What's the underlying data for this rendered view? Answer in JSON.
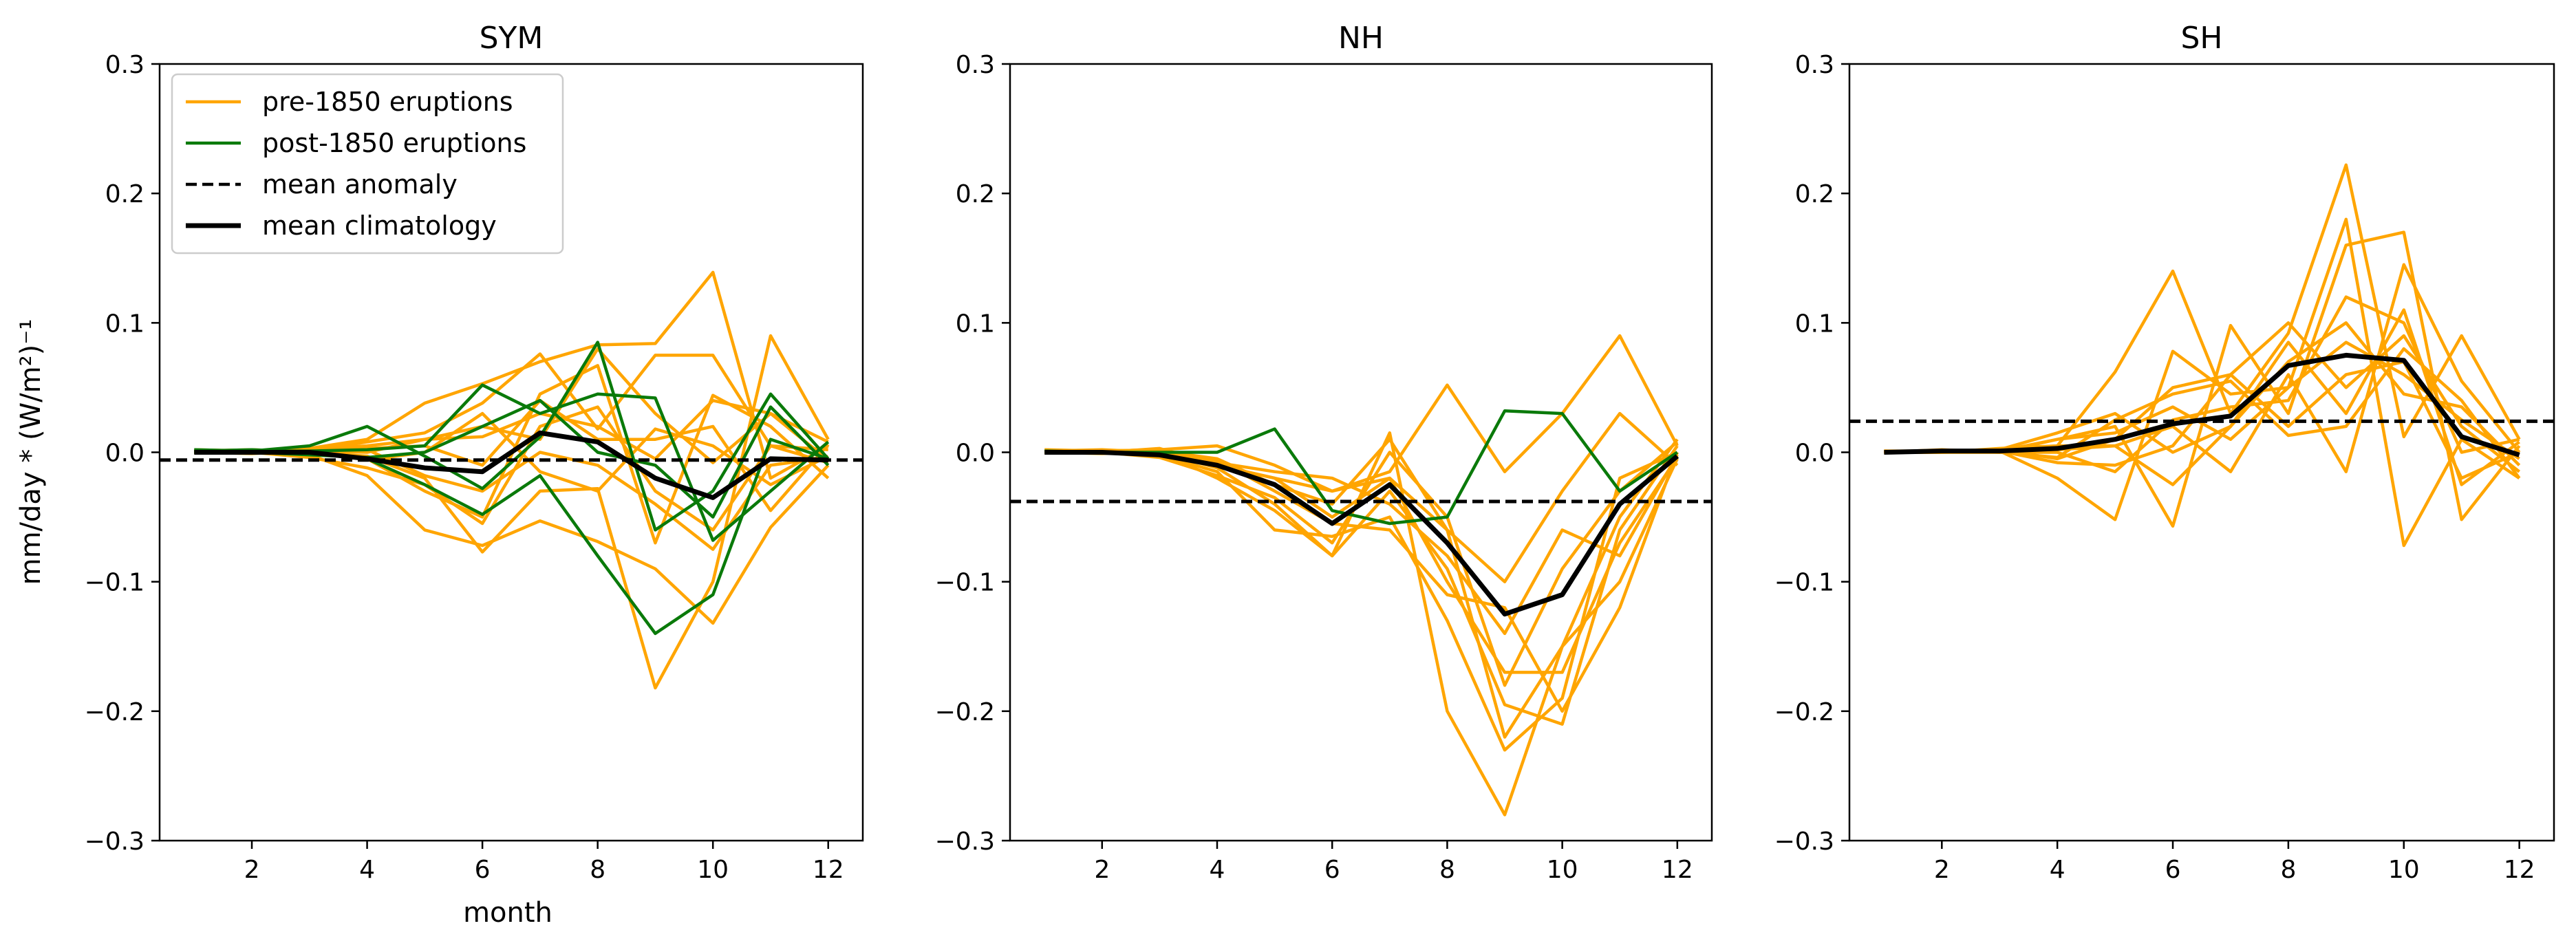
{
  "figure": {
    "ylabel": "mm/day * (W/m²)⁻¹",
    "xlabel": "month"
  },
  "legend": [
    {
      "label": "pre-1850 eruptions",
      "color": "#FFA500",
      "style": "solid"
    },
    {
      "label": "post-1850 eruptions",
      "color": "#0A7A0A",
      "style": "solid"
    },
    {
      "label": "mean anomaly",
      "color": "#000000",
      "style": "dashed"
    },
    {
      "label": "mean climatology",
      "color": "#000000",
      "style": "solid-thick"
    }
  ],
  "colors": {
    "pre": "#FFA500",
    "post": "#0A7A0A",
    "mean": "#000000"
  },
  "chart_data": [
    {
      "type": "line",
      "title": "SYM",
      "xlabel": "month",
      "ylabel": "mm/day * (W/m²)⁻¹",
      "xlim": [
        0.4,
        12.6
      ],
      "ylim": [
        -0.3,
        0.3
      ],
      "xticks": [
        2,
        4,
        6,
        8,
        10,
        12
      ],
      "yticks": [
        -0.3,
        -0.2,
        -0.1,
        0.0,
        0.1,
        0.2,
        0.3
      ],
      "ytick_labels": [
        "−0.3",
        "−0.2",
        "−0.1",
        "0.0",
        "0.1",
        "0.2",
        "0.3"
      ],
      "x": [
        1,
        2,
        3,
        4,
        5,
        6,
        7,
        8,
        9,
        10,
        11,
        12
      ],
      "pre1850": [
        [
          0.002,
          0.001,
          0.0,
          -0.003,
          -0.02,
          -0.077,
          -0.03,
          -0.028,
          -0.182,
          -0.1,
          0.09,
          0.01
        ],
        [
          0.001,
          0.0,
          0.003,
          0.01,
          0.038,
          0.053,
          0.07,
          0.083,
          0.084,
          0.139,
          -0.02,
          0.005
        ],
        [
          0.0,
          0.001,
          -0.002,
          -0.018,
          -0.06,
          -0.072,
          -0.053,
          -0.069,
          -0.09,
          -0.132,
          -0.058,
          -0.01
        ],
        [
          0.0,
          -0.001,
          0.001,
          0.008,
          0.015,
          0.038,
          0.076,
          0.018,
          0.075,
          0.075,
          0.005,
          0.002
        ],
        [
          0.001,
          0.002,
          0.0,
          -0.005,
          -0.03,
          -0.05,
          0.045,
          0.067,
          -0.07,
          0.044,
          0.02,
          -0.02
        ],
        [
          0.0,
          0.001,
          0.002,
          0.005,
          0.01,
          0.02,
          0.01,
          0.08,
          0.03,
          -0.008,
          0.03,
          0.008
        ],
        [
          0.0,
          0.0,
          -0.004,
          -0.012,
          -0.025,
          -0.055,
          0.02,
          0.035,
          -0.03,
          -0.06,
          0.005,
          -0.008
        ],
        [
          0.001,
          0.0,
          0.001,
          0.003,
          0.005,
          -0.01,
          0.04,
          0.01,
          0.01,
          0.02,
          -0.045,
          0.006
        ],
        [
          0.0,
          0.001,
          0.002,
          -0.006,
          0.0,
          0.03,
          -0.015,
          -0.03,
          0.018,
          0.005,
          -0.025,
          -0.003
        ],
        [
          0.0,
          0.0,
          0.0,
          0.002,
          -0.018,
          -0.03,
          0.0,
          -0.01,
          -0.04,
          -0.075,
          -0.01,
          -0.004
        ],
        [
          0.001,
          0.0,
          0.001,
          0.0,
          0.01,
          0.012,
          0.03,
          0.02,
          -0.005,
          0.04,
          0.03,
          -0.006
        ]
      ],
      "post1850": [
        [
          0.002,
          0.001,
          0.005,
          0.02,
          -0.003,
          -0.028,
          0.012,
          0.085,
          -0.06,
          -0.03,
          0.045,
          -0.005
        ],
        [
          0.001,
          0.002,
          0.0,
          -0.005,
          -0.025,
          -0.048,
          -0.018,
          -0.08,
          -0.14,
          -0.11,
          0.01,
          -0.005
        ],
        [
          0.0,
          0.001,
          0.001,
          0.002,
          0.005,
          0.052,
          0.03,
          0.045,
          0.042,
          -0.068,
          -0.03,
          0.008
        ],
        [
          0.0,
          0.0,
          -0.002,
          -0.004,
          0.0,
          0.02,
          0.04,
          0.0,
          -0.01,
          -0.05,
          0.035,
          -0.01
        ]
      ],
      "mean_climatology": [
        0.0,
        0.0,
        0.0,
        -0.005,
        -0.012,
        -0.015,
        0.015,
        0.008,
        -0.02,
        -0.035,
        -0.005,
        -0.006
      ],
      "mean_anomaly": -0.006
    },
    {
      "type": "line",
      "title": "NH",
      "xlabel": "",
      "ylabel": "",
      "xlim": [
        0.4,
        12.6
      ],
      "ylim": [
        -0.3,
        0.3
      ],
      "xticks": [
        2,
        4,
        6,
        8,
        10,
        12
      ],
      "yticks": [
        -0.3,
        -0.2,
        -0.1,
        0.0,
        0.1,
        0.2,
        0.3
      ],
      "ytick_labels": [
        "−0.3",
        "−0.2",
        "−0.1",
        "0.0",
        "0.1",
        "0.2",
        "0.3"
      ],
      "x": [
        1,
        2,
        3,
        4,
        5,
        6,
        7,
        8,
        9,
        10,
        11,
        12
      ],
      "pre1850": [
        [
          0.002,
          0.001,
          0.0,
          -0.02,
          -0.045,
          -0.08,
          0.015,
          -0.2,
          -0.28,
          -0.15,
          -0.05,
          0.01
        ],
        [
          0.001,
          0.0,
          0.003,
          -0.01,
          -0.02,
          -0.03,
          -0.015,
          0.052,
          -0.015,
          0.03,
          0.09,
          0.005
        ],
        [
          0.0,
          0.001,
          -0.002,
          -0.015,
          -0.06,
          -0.065,
          -0.05,
          -0.13,
          -0.23,
          -0.19,
          -0.02,
          0.0
        ],
        [
          0.0,
          -0.001,
          0.001,
          -0.005,
          -0.025,
          -0.04,
          0.01,
          -0.06,
          -0.1,
          -0.03,
          0.03,
          -0.01
        ],
        [
          0.001,
          0.002,
          0.0,
          -0.012,
          -0.04,
          -0.08,
          -0.03,
          -0.09,
          -0.195,
          -0.21,
          -0.06,
          0.005
        ],
        [
          0.0,
          0.001,
          0.002,
          0.005,
          -0.01,
          -0.03,
          -0.02,
          -0.06,
          -0.22,
          -0.15,
          -0.1,
          -0.005
        ],
        [
          0.0,
          0.0,
          -0.004,
          -0.018,
          -0.035,
          -0.07,
          0.0,
          -0.05,
          -0.18,
          -0.09,
          -0.03,
          0.008
        ],
        [
          0.001,
          0.0,
          0.001,
          -0.008,
          -0.015,
          -0.02,
          -0.04,
          -0.08,
          -0.14,
          -0.06,
          -0.08,
          -0.002
        ],
        [
          0.0,
          0.001,
          0.002,
          -0.006,
          -0.03,
          -0.055,
          -0.06,
          -0.11,
          -0.12,
          -0.2,
          -0.12,
          0.0
        ],
        [
          0.0,
          0.0,
          0.0,
          -0.01,
          -0.02,
          -0.05,
          -0.02,
          -0.1,
          -0.17,
          -0.17,
          -0.07,
          -0.004
        ]
      ],
      "post1850": [
        [
          0.001,
          0.0,
          0.0,
          0.0,
          0.018,
          -0.045,
          -0.055,
          -0.05,
          0.032,
          0.03,
          -0.03,
          0.0
        ]
      ],
      "mean_climatology": [
        0.0,
        0.0,
        -0.002,
        -0.01,
        -0.025,
        -0.055,
        -0.025,
        -0.07,
        -0.125,
        -0.11,
        -0.04,
        -0.003
      ],
      "mean_anomaly": -0.038
    },
    {
      "type": "line",
      "title": "SH",
      "xlabel": "",
      "ylabel": "",
      "xlim": [
        0.4,
        12.6
      ],
      "ylim": [
        -0.3,
        0.3
      ],
      "xticks": [
        2,
        4,
        6,
        8,
        10,
        12
      ],
      "yticks": [
        -0.3,
        -0.2,
        -0.1,
        0.0,
        0.1,
        0.2,
        0.3
      ],
      "ytick_labels": [
        "−0.3",
        "−0.2",
        "−0.1",
        "0.0",
        "0.1",
        "0.2",
        "0.3"
      ],
      "x": [
        1,
        2,
        3,
        4,
        5,
        6,
        7,
        8,
        9,
        10,
        11,
        12
      ],
      "pre1850": [
        [
          0.0,
          0.001,
          0.002,
          0.005,
          0.062,
          0.14,
          0.03,
          0.092,
          0.222,
          0.012,
          0.09,
          0.01
        ],
        [
          0.001,
          0.0,
          0.001,
          -0.02,
          -0.052,
          0.078,
          0.045,
          0.05,
          0.18,
          -0.072,
          0.01,
          -0.02
        ],
        [
          0.0,
          0.002,
          0.0,
          0.01,
          0.02,
          -0.057,
          0.098,
          0.03,
          0.16,
          0.17,
          -0.052,
          0.005
        ],
        [
          0.0,
          0.0,
          0.003,
          0.005,
          0.005,
          0.02,
          -0.015,
          0.06,
          -0.015,
          0.145,
          0.055,
          0.0
        ],
        [
          0.001,
          0.001,
          0.002,
          -0.005,
          0.01,
          0.05,
          0.06,
          0.1,
          0.05,
          0.09,
          0.02,
          -0.015
        ],
        [
          0.0,
          0.001,
          0.0,
          0.0,
          -0.015,
          0.025,
          0.035,
          0.04,
          0.12,
          0.1,
          0.0,
          0.01
        ],
        [
          0.0,
          0.0,
          0.001,
          -0.008,
          -0.01,
          0.005,
          0.06,
          0.02,
          0.06,
          0.07,
          -0.02,
          0.0
        ],
        [
          0.001,
          0.0,
          0.002,
          0.015,
          0.03,
          0.0,
          0.02,
          0.07,
          0.1,
          0.045,
          0.035,
          -0.01
        ],
        [
          0.0,
          0.0,
          0.0,
          0.002,
          0.005,
          -0.025,
          0.02,
          0.085,
          0.03,
          0.11,
          -0.025,
          0.008
        ],
        [
          0.0,
          0.001,
          0.001,
          0.01,
          0.015,
          0.035,
          0.01,
          0.05,
          0.085,
          0.06,
          0.025,
          -0.005
        ],
        [
          0.0,
          0.0,
          0.0,
          -0.004,
          0.025,
          0.045,
          0.055,
          0.013,
          0.02,
          0.08,
          0.04,
          -0.02
        ]
      ],
      "post1850": [],
      "mean_climatology": [
        0.0,
        0.001,
        0.001,
        0.003,
        0.01,
        0.022,
        0.028,
        0.067,
        0.075,
        0.071,
        0.012,
        -0.002
      ],
      "mean_anomaly": 0.024
    }
  ]
}
